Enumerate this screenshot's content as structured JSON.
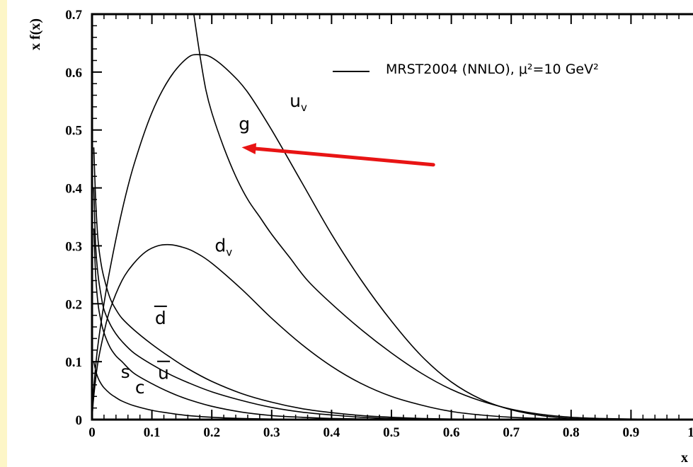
{
  "chart_data": {
    "type": "line",
    "ylabel": "x f(x)",
    "xlabel": "x",
    "xlim": [
      0,
      1
    ],
    "ylim": [
      0,
      0.7
    ],
    "x_ticks": [
      "0",
      "0.1",
      "0.2",
      "0.3",
      "0.4",
      "0.5",
      "0.6",
      "0.7",
      "0.8",
      "0.9",
      "1"
    ],
    "y_ticks": [
      "0",
      "0.1",
      "0.2",
      "0.3",
      "0.4",
      "0.5",
      "0.6",
      "0.7"
    ],
    "grid": false,
    "legend": {
      "placement": "top-right",
      "text": "MRST2004 (NNLO), μ²=10 GeV²"
    },
    "line_color": "#000000",
    "annotation": {
      "type": "arrow",
      "color": "#e81414",
      "from": [
        0.57,
        0.44
      ],
      "to": [
        0.25,
        0.47
      ],
      "points_to": "g"
    },
    "series": [
      {
        "name": "u_v",
        "x": [
          0,
          0.002,
          0.005,
          0.01,
          0.02,
          0.03,
          0.05,
          0.07,
          0.1,
          0.13,
          0.16,
          0.18,
          0.2,
          0.23,
          0.26,
          0.3,
          0.35,
          0.4,
          0.45,
          0.5,
          0.55,
          0.6,
          0.65,
          0.7,
          0.75,
          0.8,
          0.85,
          0.9,
          0.95,
          1.0
        ],
        "y": [
          0,
          0.04,
          0.08,
          0.13,
          0.2,
          0.26,
          0.36,
          0.44,
          0.53,
          0.59,
          0.625,
          0.63,
          0.625,
          0.6,
          0.565,
          0.5,
          0.41,
          0.32,
          0.24,
          0.17,
          0.11,
          0.065,
          0.035,
          0.017,
          0.007,
          0.002,
          0.001,
          0.0005,
          0.0002,
          0
        ]
      },
      {
        "name": "d_v",
        "x": [
          0,
          0.002,
          0.005,
          0.01,
          0.02,
          0.03,
          0.05,
          0.07,
          0.09,
          0.11,
          0.13,
          0.15,
          0.17,
          0.2,
          0.25,
          0.3,
          0.35,
          0.4,
          0.45,
          0.5,
          0.55,
          0.6,
          0.65,
          0.7,
          0.75,
          0.8,
          0.9,
          1.0
        ],
        "y": [
          0,
          0.03,
          0.06,
          0.1,
          0.15,
          0.19,
          0.24,
          0.27,
          0.29,
          0.3,
          0.302,
          0.298,
          0.29,
          0.27,
          0.225,
          0.175,
          0.13,
          0.092,
          0.062,
          0.04,
          0.025,
          0.014,
          0.008,
          0.004,
          0.002,
          0.001,
          0.0003,
          0
        ]
      },
      {
        "name": "g",
        "x": [
          0.17,
          0.18,
          0.19,
          0.2,
          0.22,
          0.24,
          0.26,
          0.28,
          0.3,
          0.33,
          0.36,
          0.4,
          0.45,
          0.5,
          0.55,
          0.6,
          0.65,
          0.7,
          0.75,
          0.8,
          0.85,
          0.9,
          1.0
        ],
        "y": [
          0.7,
          0.63,
          0.57,
          0.53,
          0.47,
          0.42,
          0.38,
          0.35,
          0.32,
          0.28,
          0.24,
          0.2,
          0.155,
          0.115,
          0.08,
          0.052,
          0.032,
          0.018,
          0.009,
          0.004,
          0.002,
          0.001,
          0
        ]
      },
      {
        "name": "d̄",
        "x": [
          0.003,
          0.006,
          0.01,
          0.015,
          0.02,
          0.03,
          0.04,
          0.05,
          0.07,
          0.1,
          0.13,
          0.16,
          0.2,
          0.25,
          0.3,
          0.35,
          0.4,
          0.45,
          0.5,
          0.55,
          0.6,
          0.7
        ],
        "y": [
          0.47,
          0.38,
          0.31,
          0.27,
          0.245,
          0.21,
          0.19,
          0.175,
          0.155,
          0.13,
          0.108,
          0.088,
          0.066,
          0.045,
          0.03,
          0.019,
          0.012,
          0.007,
          0.004,
          0.002,
          0.001,
          0
        ]
      },
      {
        "name": "ū",
        "x": [
          0.003,
          0.006,
          0.01,
          0.015,
          0.02,
          0.03,
          0.04,
          0.05,
          0.07,
          0.1,
          0.13,
          0.16,
          0.2,
          0.25,
          0.3,
          0.35,
          0.4,
          0.45,
          0.5,
          0.6,
          0.7
        ],
        "y": [
          0.4,
          0.3,
          0.25,
          0.215,
          0.19,
          0.165,
          0.148,
          0.135,
          0.115,
          0.095,
          0.078,
          0.064,
          0.048,
          0.033,
          0.021,
          0.013,
          0.008,
          0.004,
          0.002,
          0.0005,
          0
        ]
      },
      {
        "name": "s",
        "x": [
          0.003,
          0.006,
          0.01,
          0.015,
          0.02,
          0.03,
          0.04,
          0.05,
          0.07,
          0.1,
          0.13,
          0.16,
          0.2,
          0.25,
          0.3,
          0.35,
          0.4,
          0.5,
          0.6
        ],
        "y": [
          0.33,
          0.25,
          0.2,
          0.17,
          0.15,
          0.125,
          0.11,
          0.1,
          0.08,
          0.062,
          0.047,
          0.035,
          0.023,
          0.013,
          0.007,
          0.004,
          0.002,
          0.0005,
          0
        ]
      },
      {
        "name": "c",
        "x": [
          0.003,
          0.006,
          0.01,
          0.015,
          0.02,
          0.03,
          0.04,
          0.05,
          0.07,
          0.1,
          0.13,
          0.16,
          0.2,
          0.25,
          0.3,
          0.4
        ],
        "y": [
          0.1,
          0.085,
          0.072,
          0.062,
          0.055,
          0.045,
          0.038,
          0.032,
          0.024,
          0.016,
          0.011,
          0.007,
          0.004,
          0.002,
          0.001,
          0
        ]
      }
    ],
    "curve_labels": [
      {
        "series": "u_v",
        "text": "u",
        "sub": "v",
        "x": 0.33,
        "y": 0.54
      },
      {
        "series": "g",
        "text": "g",
        "sub": "",
        "x": 0.245,
        "y": 0.5
      },
      {
        "series": "d_v",
        "text": "d",
        "sub": "v",
        "x": 0.205,
        "y": 0.29
      },
      {
        "series": "d̄",
        "text": "d",
        "sub": "",
        "bar": true,
        "x": 0.105,
        "y": 0.165
      },
      {
        "series": "ū",
        "text": "u",
        "sub": "",
        "bar": true,
        "x": 0.11,
        "y": 0.07
      },
      {
        "series": "s",
        "text": "s",
        "sub": "",
        "x": 0.048,
        "y": 0.072
      },
      {
        "series": "c",
        "text": "c",
        "sub": "",
        "x": 0.072,
        "y": 0.045
      }
    ]
  }
}
